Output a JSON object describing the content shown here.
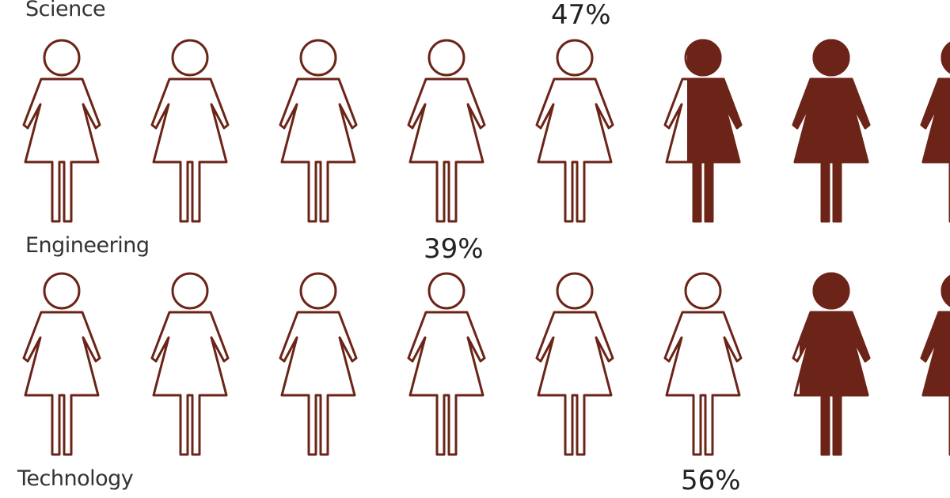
{
  "theme": {
    "figure_color": "#6b2417"
  },
  "chart_data": {
    "type": "pictograph",
    "figures_per_row": 10,
    "visible_figures_per_row": 8,
    "rows": [
      {
        "label": "Science",
        "value_label": "47%",
        "value": 47
      },
      {
        "label": "Engineering",
        "value_label": "39%",
        "value": 39
      },
      {
        "label": "Technology",
        "value_label": "56%",
        "value": 56
      }
    ]
  }
}
